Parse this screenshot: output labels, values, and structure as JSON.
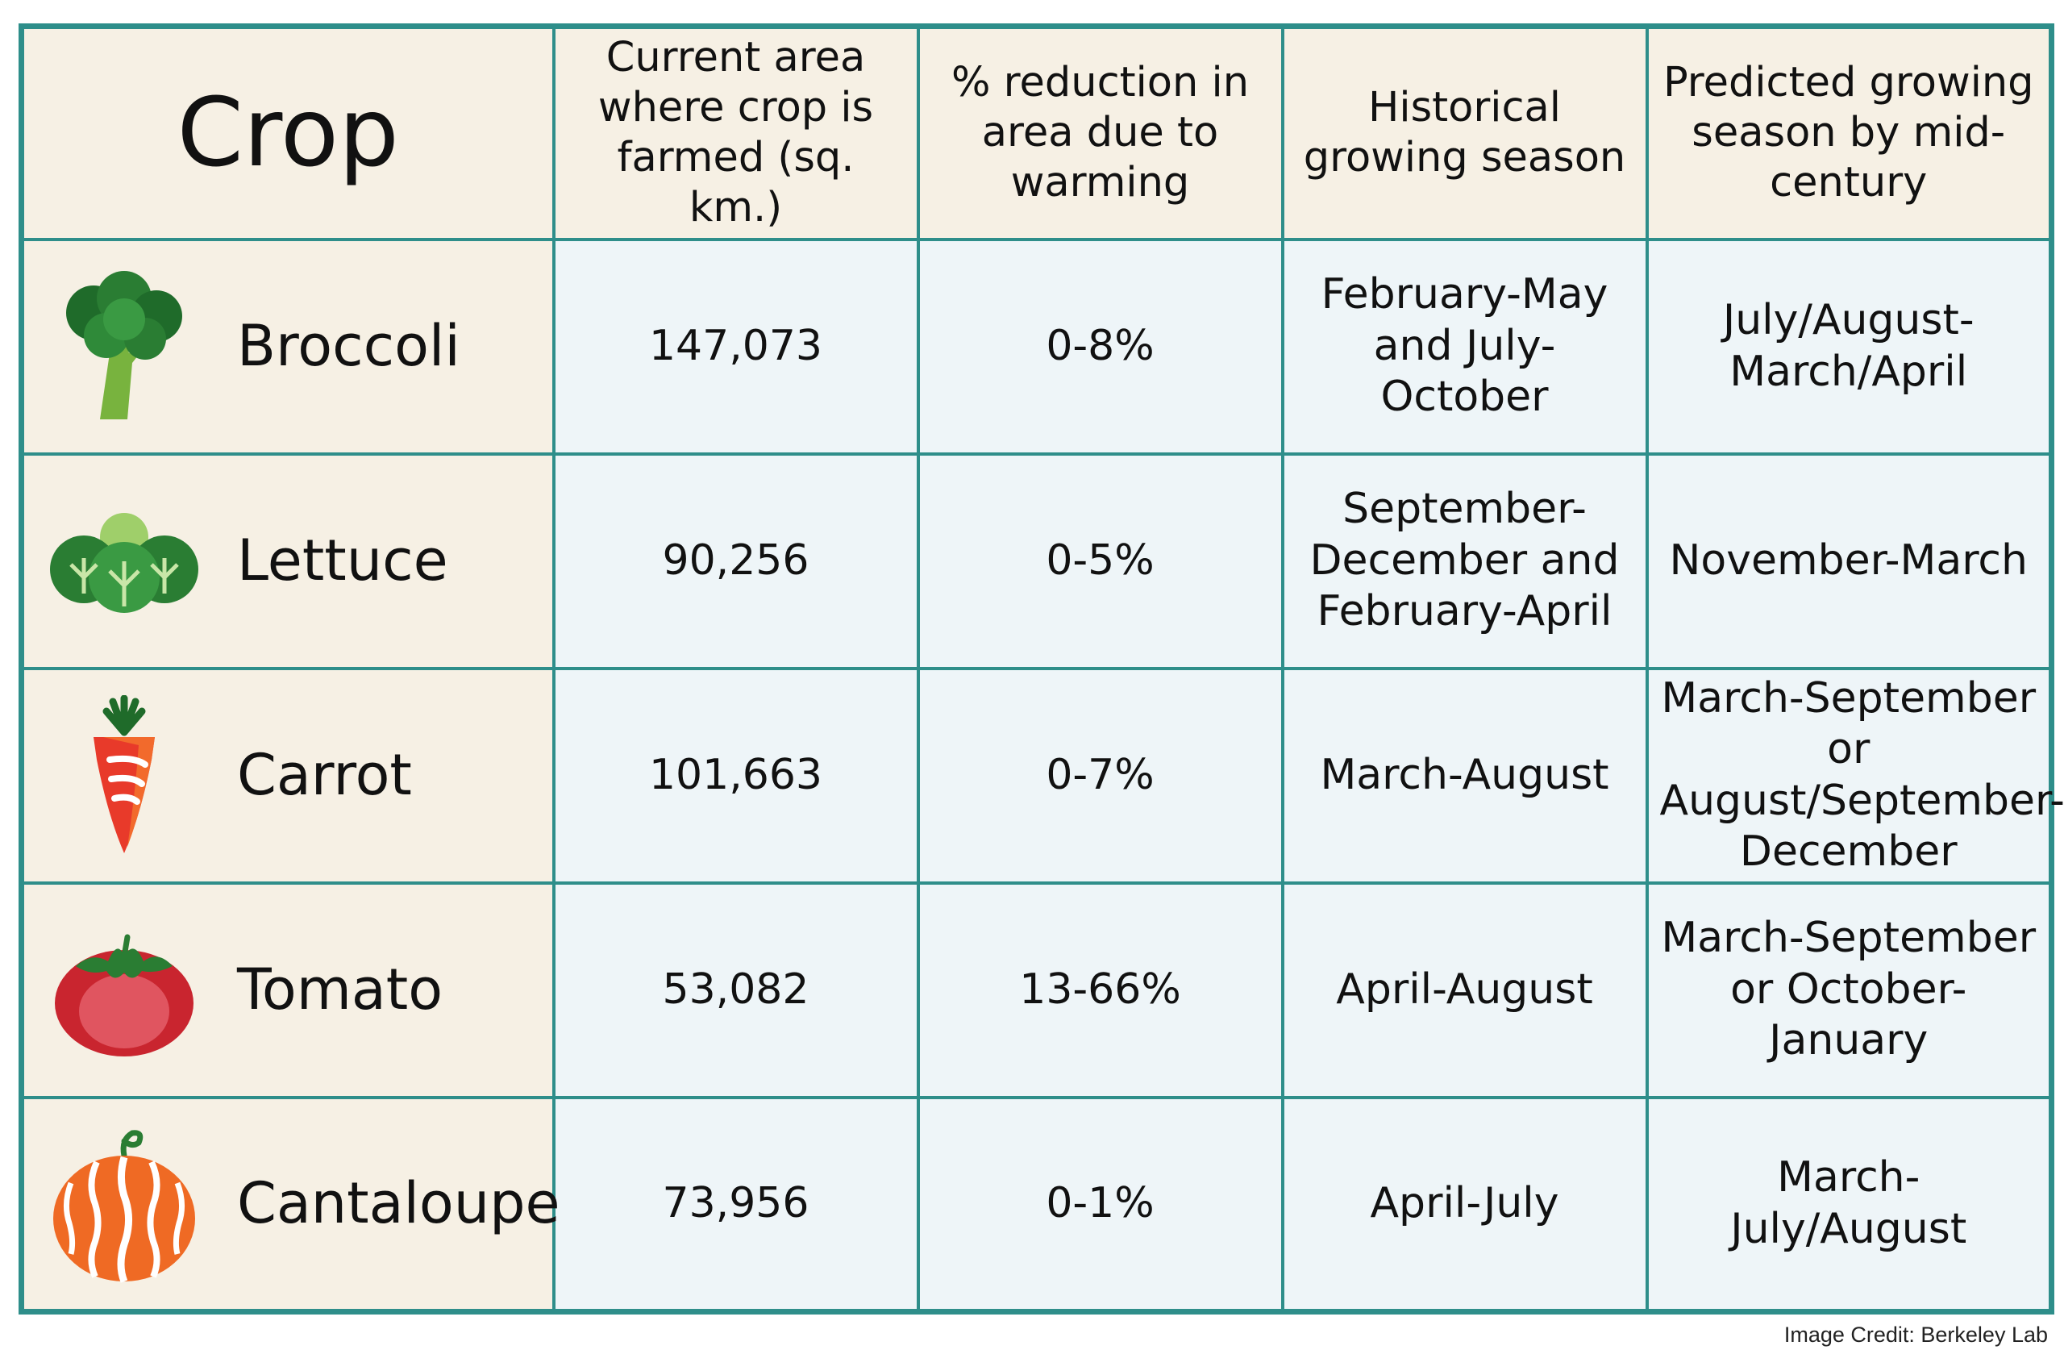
{
  "chart_data": {
    "type": "table",
    "title": "",
    "columns": [
      "Crop",
      "Current area where crop is farmed (sq. km.)",
      "% reduction in area due to warming",
      "Historical growing season",
      "Predicted growing season by mid-century"
    ],
    "rows": [
      {
        "crop": "Broccoli",
        "icon": "broccoli-icon",
        "area": "147,073",
        "reduction": "0-8%",
        "historical": "February-May and July-October",
        "predicted": "July/August-March/April"
      },
      {
        "crop": "Lettuce",
        "icon": "lettuce-icon",
        "area": "90,256",
        "reduction": "0-5%",
        "historical": "September-December and February-April",
        "predicted": "November-March"
      },
      {
        "crop": "Carrot",
        "icon": "carrot-icon",
        "area": "101,663",
        "reduction": "0-7%",
        "historical": "March-August",
        "predicted": "March-September or August/September-December"
      },
      {
        "crop": "Tomato",
        "icon": "tomato-icon",
        "area": "53,082",
        "reduction": "13-66%",
        "historical": "April-August",
        "predicted": "March-September or October-January"
      },
      {
        "crop": "Cantaloupe",
        "icon": "cantaloupe-icon",
        "area": "73,956",
        "reduction": "0-1%",
        "historical": "April-July",
        "predicted": "March-July/August"
      }
    ]
  },
  "colors": {
    "border": "#2e8e8a",
    "crop_cell_bg": "#f6f0e4",
    "value_cell_bg": "#eef5f8"
  },
  "credit": "Image Credit: Berkeley Lab"
}
